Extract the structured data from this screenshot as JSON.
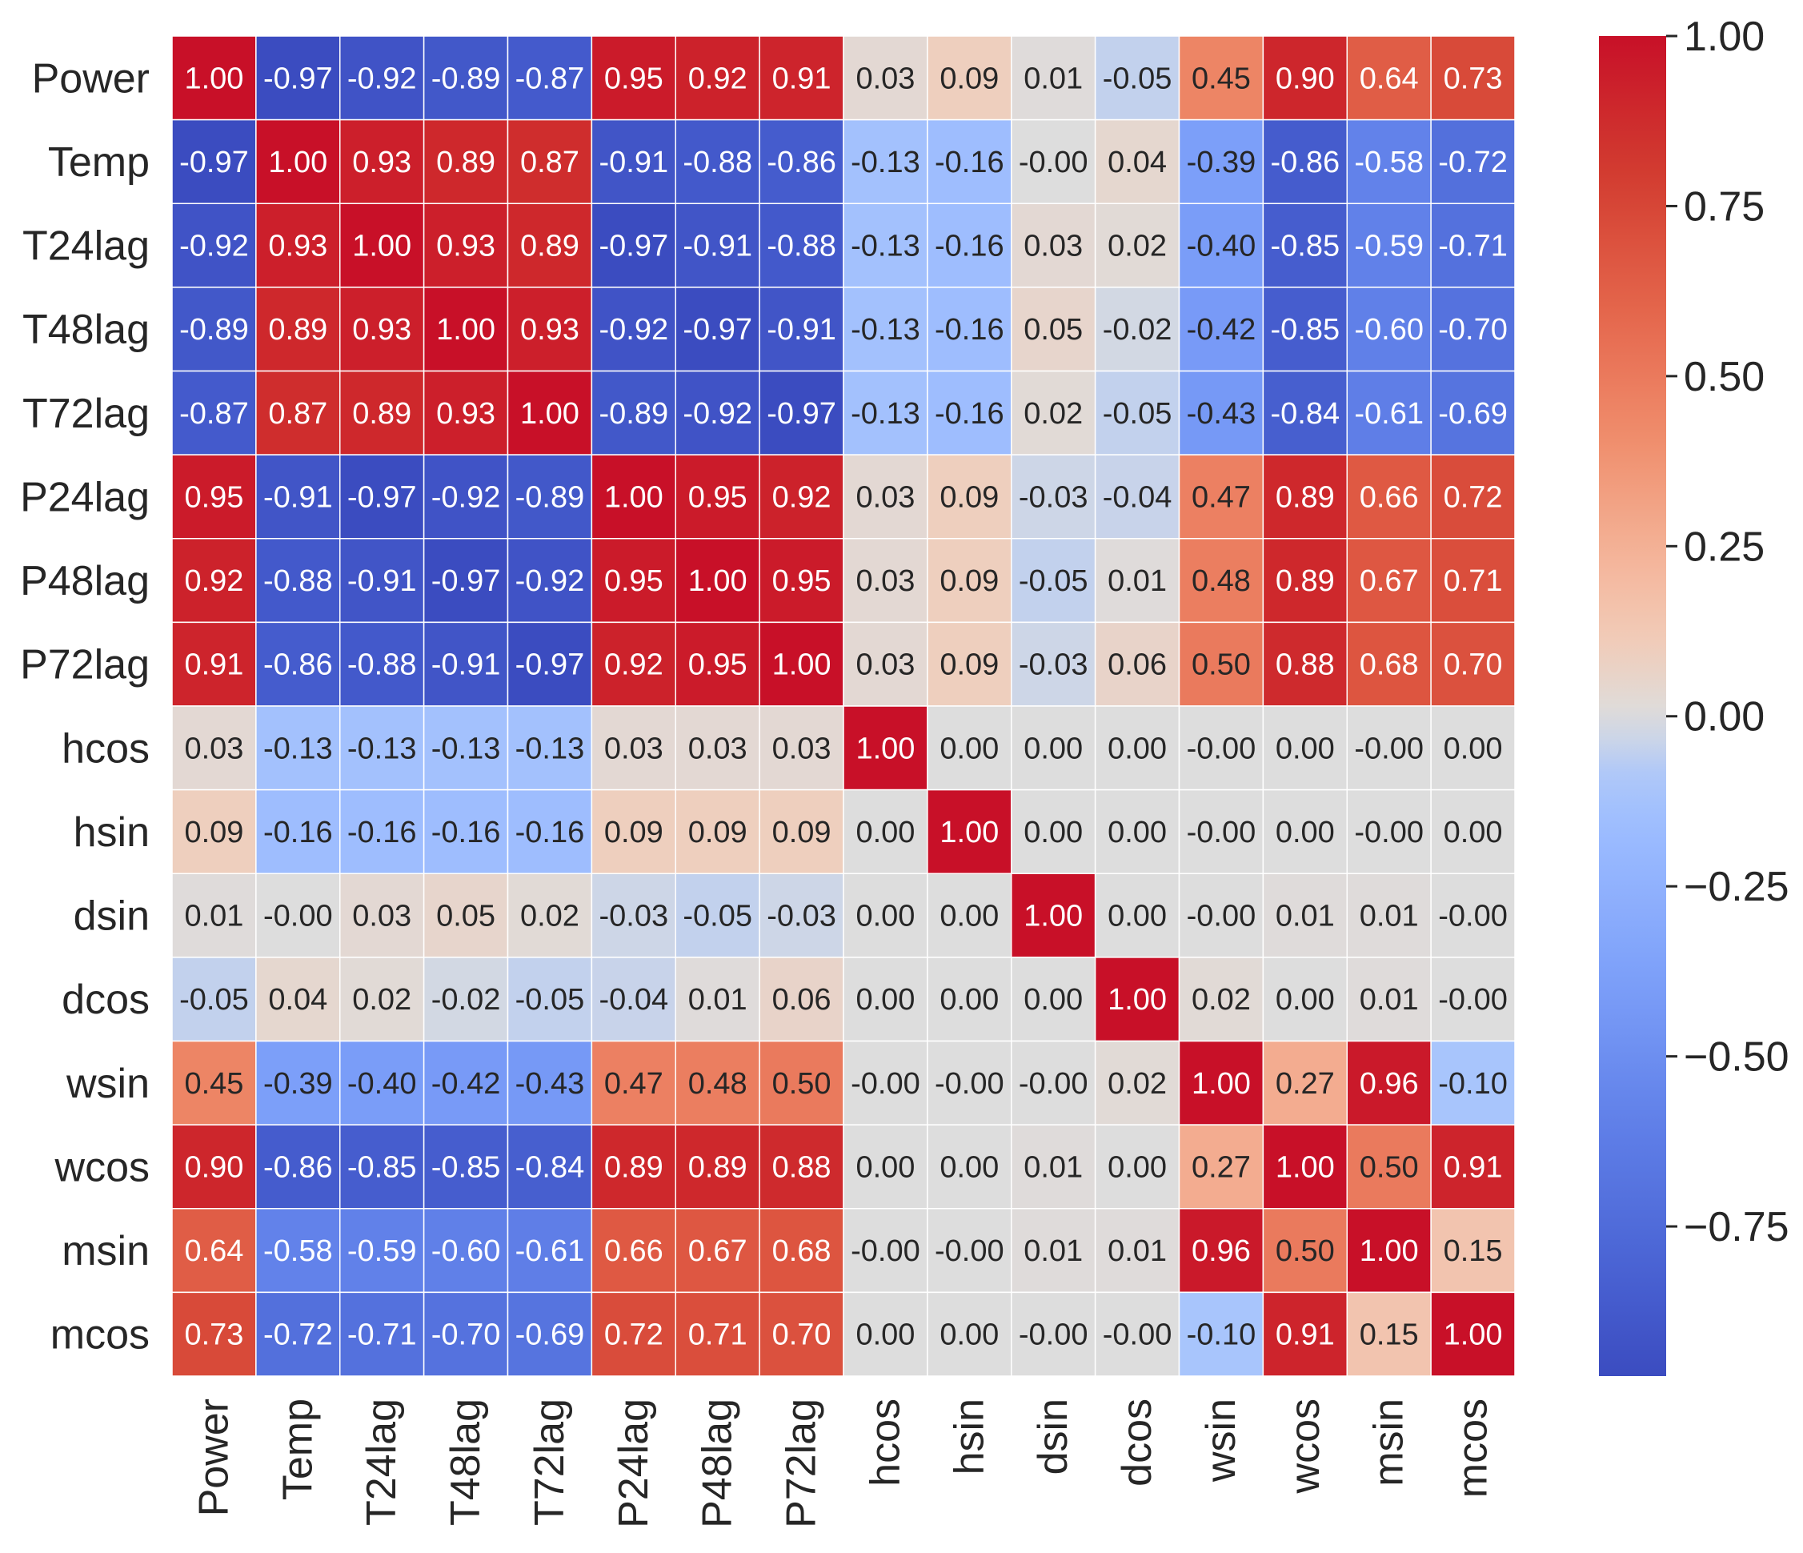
{
  "chart_data": {
    "type": "heatmap",
    "title": "",
    "variables": [
      "Power",
      "Temp",
      "T24lag",
      "T48lag",
      "T72lag",
      "P24lag",
      "P48lag",
      "P72lag",
      "hcos",
      "hsin",
      "dsin",
      "dcos",
      "wsin",
      "wcos",
      "msin",
      "mcos"
    ],
    "matrix": [
      [
        1.0,
        -0.97,
        -0.92,
        -0.89,
        -0.87,
        0.95,
        0.92,
        0.91,
        0.03,
        0.09,
        0.01,
        -0.05,
        0.45,
        0.9,
        0.64,
        0.73
      ],
      [
        -0.97,
        1.0,
        0.93,
        0.89,
        0.87,
        -0.91,
        -0.88,
        -0.86,
        -0.13,
        -0.16,
        -0.0,
        0.04,
        -0.39,
        -0.86,
        -0.58,
        -0.72
      ],
      [
        -0.92,
        0.93,
        1.0,
        0.93,
        0.89,
        -0.97,
        -0.91,
        -0.88,
        -0.13,
        -0.16,
        0.03,
        0.02,
        -0.4,
        -0.85,
        -0.59,
        -0.71
      ],
      [
        -0.89,
        0.89,
        0.93,
        1.0,
        0.93,
        -0.92,
        -0.97,
        -0.91,
        -0.13,
        -0.16,
        0.05,
        -0.02,
        -0.42,
        -0.85,
        -0.6,
        -0.7
      ],
      [
        -0.87,
        0.87,
        0.89,
        0.93,
        1.0,
        -0.89,
        -0.92,
        -0.97,
        -0.13,
        -0.16,
        0.02,
        -0.05,
        -0.43,
        -0.84,
        -0.61,
        -0.69
      ],
      [
        0.95,
        -0.91,
        -0.97,
        -0.92,
        -0.89,
        1.0,
        0.95,
        0.92,
        0.03,
        0.09,
        -0.03,
        -0.04,
        0.47,
        0.89,
        0.66,
        0.72
      ],
      [
        0.92,
        -0.88,
        -0.91,
        -0.97,
        -0.92,
        0.95,
        1.0,
        0.95,
        0.03,
        0.09,
        -0.05,
        0.01,
        0.48,
        0.89,
        0.67,
        0.71
      ],
      [
        0.91,
        -0.86,
        -0.88,
        -0.91,
        -0.97,
        0.92,
        0.95,
        1.0,
        0.03,
        0.09,
        -0.03,
        0.06,
        0.5,
        0.88,
        0.68,
        0.7
      ],
      [
        0.03,
        -0.13,
        -0.13,
        -0.13,
        -0.13,
        0.03,
        0.03,
        0.03,
        1.0,
        0.0,
        0.0,
        0.0,
        -0.0,
        0.0,
        -0.0,
        0.0
      ],
      [
        0.09,
        -0.16,
        -0.16,
        -0.16,
        -0.16,
        0.09,
        0.09,
        0.09,
        0.0,
        1.0,
        0.0,
        0.0,
        -0.0,
        0.0,
        -0.0,
        0.0
      ],
      [
        0.01,
        -0.0,
        0.03,
        0.05,
        0.02,
        -0.03,
        -0.05,
        -0.03,
        0.0,
        0.0,
        1.0,
        0.0,
        -0.0,
        0.01,
        0.01,
        -0.0
      ],
      [
        -0.05,
        0.04,
        0.02,
        -0.02,
        -0.05,
        -0.04,
        0.01,
        0.06,
        0.0,
        0.0,
        0.0,
        1.0,
        0.02,
        0.0,
        0.01,
        -0.0
      ],
      [
        0.45,
        -0.39,
        -0.4,
        -0.42,
        -0.43,
        0.47,
        0.48,
        0.5,
        -0.0,
        -0.0,
        -0.0,
        0.02,
        1.0,
        0.27,
        0.96,
        -0.1
      ],
      [
        0.9,
        -0.86,
        -0.85,
        -0.85,
        -0.84,
        0.89,
        0.89,
        0.88,
        0.0,
        0.0,
        0.01,
        0.0,
        0.27,
        1.0,
        0.5,
        0.91
      ],
      [
        0.64,
        -0.58,
        -0.59,
        -0.6,
        -0.61,
        0.66,
        0.67,
        0.68,
        -0.0,
        -0.0,
        0.01,
        0.01,
        0.96,
        0.5,
        1.0,
        0.15
      ],
      [
        0.73,
        -0.72,
        -0.71,
        -0.7,
        -0.69,
        0.72,
        0.71,
        0.7,
        0.0,
        0.0,
        -0.0,
        -0.0,
        -0.1,
        0.91,
        0.15,
        1.0
      ]
    ],
    "value_format": "2 decimals",
    "colormap": "coolwarm",
    "colorbar": {
      "range": [
        -0.97,
        1.0
      ],
      "ticks": [
        1.0,
        0.75,
        0.5,
        0.25,
        0.0,
        -0.25,
        -0.5,
        -0.75
      ],
      "tick_labels": [
        "1.00",
        "0.75",
        "0.50",
        "0.25",
        "0.00",
        "−0.25",
        "−0.50",
        "−0.75"
      ]
    }
  }
}
